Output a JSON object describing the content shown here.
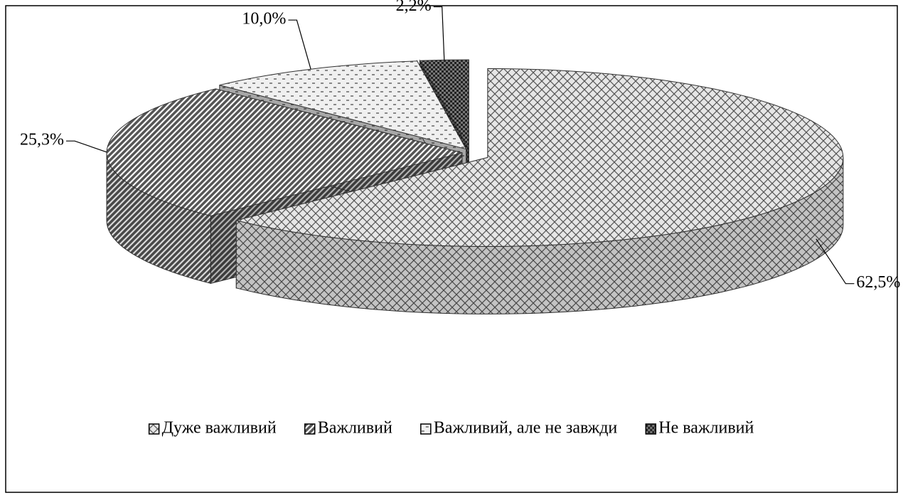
{
  "chart_data": {
    "type": "pie3d",
    "categories": [
      "Дуже важливий",
      "Важливий",
      "Важливий, але не завжди",
      "Не важливий"
    ],
    "values": [
      62.5,
      25.3,
      10.0,
      2.2
    ],
    "value_labels": [
      "62,5%",
      "25,3%",
      "10,0%",
      "2,2%"
    ],
    "colors": [
      "#e6e6e6",
      "#555555",
      "#f0f0f0",
      "#777777"
    ],
    "legend": "bottom"
  }
}
